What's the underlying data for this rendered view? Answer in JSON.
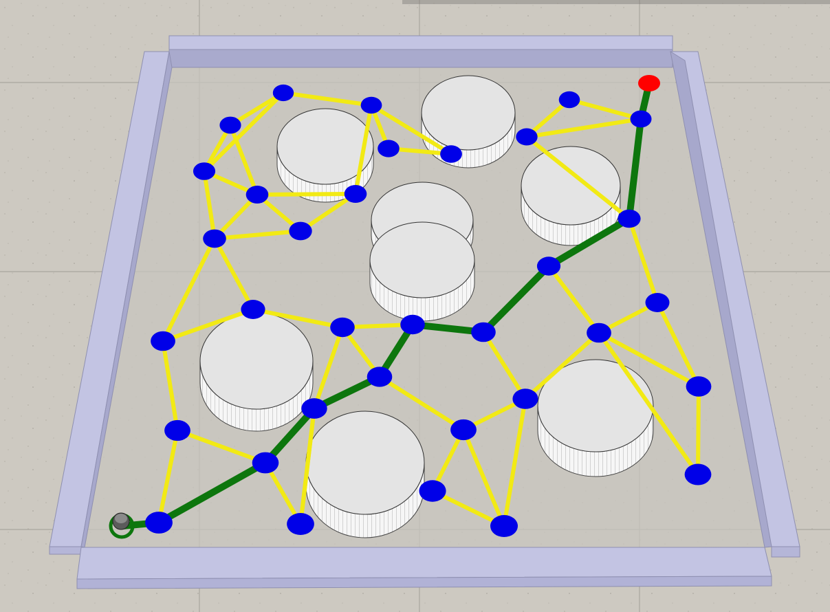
{
  "scene": {
    "type": "roadmap path planning simulation",
    "floor_color": "#cdc9c1",
    "tile_line_color": "#aaa79f",
    "wall_color": "#c1c2e0",
    "wall_shadow_color": "#a2a3c6",
    "arena_floor_color": "#c9c6bf"
  },
  "colors": {
    "roadmap_edge": "#f2ea14",
    "path_edge": "#0d760d",
    "node": "#0000e8",
    "goal": "#ff0000",
    "obstacle_top": "#e4e4e4",
    "obstacle_side": "#f4f4f4"
  },
  "robot": {
    "name": "robot",
    "color": "#555555"
  },
  "goal": {
    "name": "goal-marker"
  },
  "obstacles": [
    {
      "id": "obstacle-1"
    },
    {
      "id": "obstacle-2"
    },
    {
      "id": "obstacle-3"
    },
    {
      "id": "obstacle-4"
    },
    {
      "id": "obstacle-5"
    },
    {
      "id": "obstacle-6"
    },
    {
      "id": "obstacle-7"
    },
    {
      "id": "obstacle-8"
    }
  ],
  "roadmap": {
    "node_count": 40,
    "path_node_count": 11
  }
}
